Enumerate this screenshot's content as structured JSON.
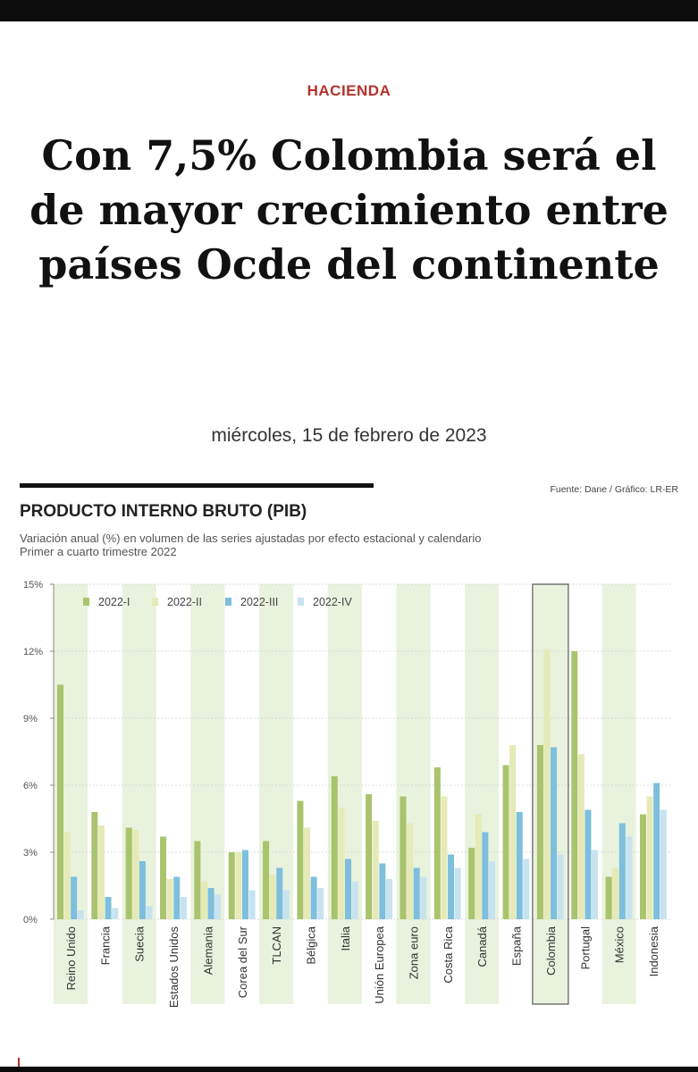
{
  "article": {
    "section": "HACIENDA",
    "title": "Con 7,5% Colombia será el de mayor crecimiento entre países Ocde del continente",
    "date": "miércoles, 15 de febrero de 2023"
  },
  "chart_header": {
    "source": "Fuente: Dane / Gráfico: LR-ER",
    "title": "PRODUCTO INTERNO BRUTO (PIB)",
    "subtitle_line1": "Variación anual (%) en volumen de las series ajustadas por efecto estacional y calendario",
    "subtitle_line2": "Primer a cuarto trimestre 2022"
  },
  "chart_data": {
    "type": "bar",
    "title": "PRODUCTO INTERNO BRUTO (PIB)",
    "ylabel": "",
    "xlabel": "",
    "ylim": [
      0,
      15
    ],
    "yticks": [
      0,
      3,
      6,
      9,
      12,
      15
    ],
    "ytick_labels": [
      "0%",
      "3%",
      "6%",
      "9%",
      "12%",
      "15%"
    ],
    "highlight": "Colombia",
    "legend_position": "top-left",
    "categories": [
      "Reino Unido",
      "Francia",
      "Suecia",
      "Estados Unidos",
      "Alemania",
      "Corea del Sur",
      "TLCAN",
      "Bélgica",
      "Italia",
      "Unión Europea",
      "Zona euro",
      "Costa Rica",
      "Canadá",
      "España",
      "Colombia",
      "Portugal",
      "México",
      "Indonesia"
    ],
    "series": [
      {
        "name": "2022-I",
        "color": "#a9c46c",
        "values": [
          10.5,
          4.8,
          4.1,
          3.7,
          3.5,
          3.0,
          3.5,
          5.3,
          6.4,
          5.6,
          5.5,
          6.8,
          3.2,
          6.9,
          7.8,
          12.0,
          1.9,
          4.7
        ]
      },
      {
        "name": "2022-II",
        "color": "#e5eab6",
        "values": [
          3.9,
          4.2,
          4.0,
          1.8,
          1.7,
          3.0,
          2.0,
          4.1,
          5.0,
          4.4,
          4.3,
          5.5,
          4.7,
          7.8,
          12.1,
          7.4,
          2.3,
          5.5
        ]
      },
      {
        "name": "2022-III",
        "color": "#7dbfdd",
        "values": [
          1.9,
          1.0,
          2.6,
          1.9,
          1.4,
          3.1,
          2.3,
          1.9,
          2.7,
          2.5,
          2.3,
          2.9,
          3.9,
          4.8,
          7.7,
          4.9,
          4.3,
          6.1
        ]
      },
      {
        "name": "2022-IV",
        "color": "#c7e3f0",
        "values": [
          0.4,
          0.5,
          0.6,
          1.0,
          1.1,
          1.3,
          1.3,
          1.4,
          1.7,
          1.8,
          1.9,
          2.3,
          2.6,
          2.7,
          2.9,
          3.1,
          3.7,
          4.9
        ]
      }
    ]
  }
}
